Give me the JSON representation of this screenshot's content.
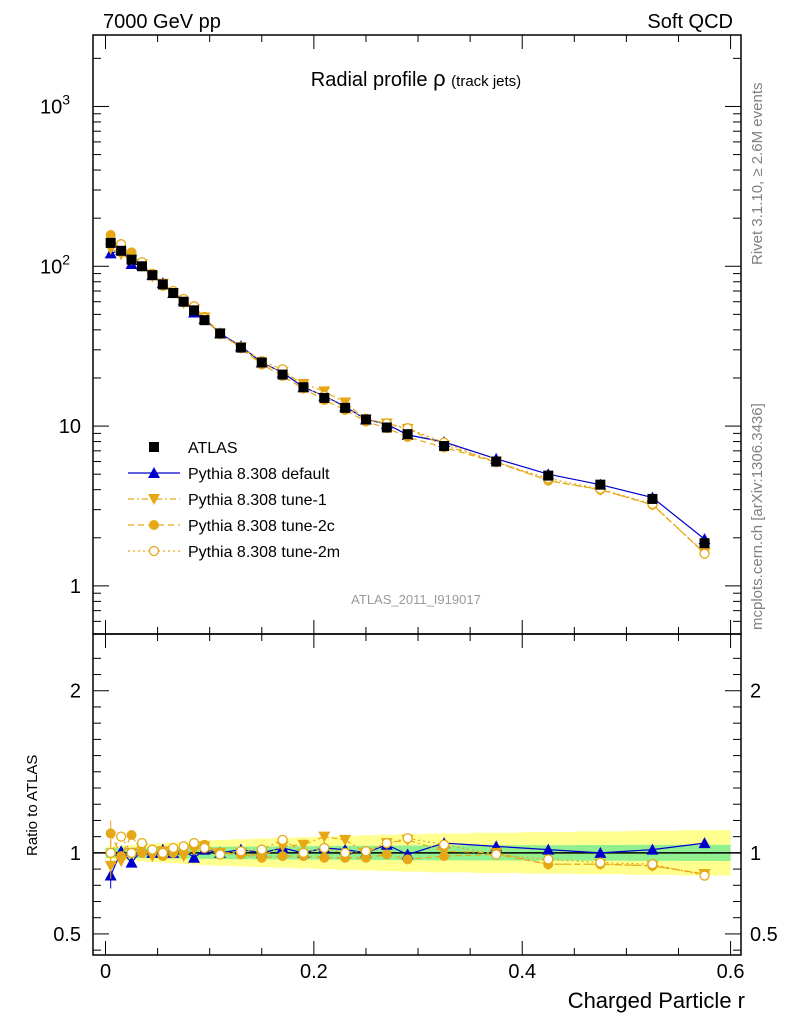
{
  "header": {
    "left": "7000 GeV pp",
    "right": "Soft QCD"
  },
  "side_text": {
    "rivet": "Rivet 3.1.10, ≥ 2.6M events",
    "mcplots": "mcplots.cern.ch [arXiv:1306.3436]"
  },
  "chart_data": {
    "type": "line",
    "title_main": "Radial profile",
    "title_symbol": "ρ",
    "title_suffix": "(track jets)",
    "analysis_label": "ATLAS_2011_I919017",
    "xlabel": "Charged Particle r",
    "ylabel_ratio": "Ratio to ATLAS",
    "xlim": [
      -0.012,
      0.61
    ],
    "ylim_main": [
      0.5,
      2800
    ],
    "ylim_ratio": [
      0.37,
      2.35
    ],
    "yscale_main": "log",
    "x_ticks": [
      {
        "value": 0,
        "label": "0"
      },
      {
        "value": 0.2,
        "label": "0.2"
      },
      {
        "value": 0.4,
        "label": "0.4"
      },
      {
        "value": 0.6,
        "label": "0.6"
      }
    ],
    "main_ticks": [
      {
        "value": 1,
        "label": "1"
      },
      {
        "value": 10,
        "label": "10"
      },
      {
        "value": 100,
        "label": "10",
        "sup": "2"
      },
      {
        "value": 1000,
        "label": "10",
        "sup": "3"
      }
    ],
    "ratio_ticks": [
      {
        "value": 0.5,
        "label": "0.5"
      },
      {
        "value": 1,
        "label": "1"
      },
      {
        "value": 2,
        "label": "2"
      }
    ],
    "x": [
      0.005,
      0.015,
      0.025,
      0.035,
      0.045,
      0.055,
      0.065,
      0.075,
      0.085,
      0.095,
      0.11,
      0.13,
      0.15,
      0.17,
      0.19,
      0.21,
      0.23,
      0.25,
      0.27,
      0.29,
      0.325,
      0.375,
      0.425,
      0.475,
      0.525,
      0.575
    ],
    "data": [
      140,
      125,
      110,
      100,
      88,
      77,
      68,
      60,
      53,
      46,
      38,
      31,
      25,
      21,
      17.5,
      15,
      13,
      11,
      9.8,
      8.9,
      7.5,
      6.0,
      4.9,
      4.3,
      3.5,
      1.85
    ],
    "series": [
      {
        "name": "ATLAS",
        "color": "#000000",
        "marker": "square",
        "dash": "none",
        "ratio": [
          1,
          1,
          1,
          1,
          1,
          1,
          1,
          1,
          1,
          1,
          1,
          1,
          1,
          1,
          1,
          1,
          1,
          1,
          1,
          1,
          1,
          1,
          1,
          1,
          1,
          1
        ]
      },
      {
        "name": "Pythia 8.308 default",
        "color": "#0000cc",
        "marker": "triangle-up",
        "dash": "none",
        "ratio": [
          0.86,
          1.01,
          0.94,
          1.02,
          1.0,
          1.02,
          1.0,
          1.02,
          0.97,
          1.02,
          1.0,
          1.02,
          1.0,
          1.03,
          1.0,
          1.03,
          1.02,
          1.0,
          1.05,
          0.99,
          1.06,
          1.04,
          1.02,
          1.0,
          1.02,
          1.06
        ]
      },
      {
        "name": "Pythia 8.308 tune-1",
        "color": "#e6a817",
        "marker": "triangle-down",
        "dash": "6,3,2,3",
        "ratio": [
          0.92,
          0.95,
          1.0,
          1.03,
          0.98,
          1.01,
          1.0,
          0.98,
          1.02,
          1.04,
          1.0,
          1.0,
          0.98,
          1.04,
          1.05,
          1.1,
          1.08,
          1.0,
          1.06,
          1.08,
          1.01,
          1.0,
          0.93,
          0.93,
          0.92,
          0.87
        ]
      },
      {
        "name": "Pythia 8.308 tune-2c",
        "color": "#e6a817",
        "marker": "circle",
        "dash": "6,4",
        "ratio": [
          1.12,
          0.98,
          1.11,
          1.0,
          1.02,
          0.98,
          1.0,
          1.01,
          1.04,
          1.05,
          1.0,
          0.99,
          0.97,
          0.98,
          0.98,
          0.97,
          0.97,
          0.97,
          0.99,
          0.96,
          0.98,
          0.99,
          0.93,
          0.93,
          0.92,
          0.87
        ]
      },
      {
        "name": "Pythia 8.308 tune-2m",
        "color": "#e6a817",
        "marker": "circle-open",
        "dash": "2,3",
        "ratio": [
          1.0,
          1.1,
          1.0,
          1.06,
          1.02,
          1.0,
          1.03,
          1.04,
          1.06,
          1.03,
          0.99,
          1.01,
          1.02,
          1.08,
          1.0,
          1.03,
          1.0,
          1.01,
          1.06,
          1.09,
          1.05,
          0.99,
          0.96,
          0.94,
          0.93,
          0.86
        ]
      }
    ],
    "bands": {
      "stat_color": "#90f090",
      "total_color": "#ffff90"
    },
    "legend_placement": "bottom-left"
  }
}
